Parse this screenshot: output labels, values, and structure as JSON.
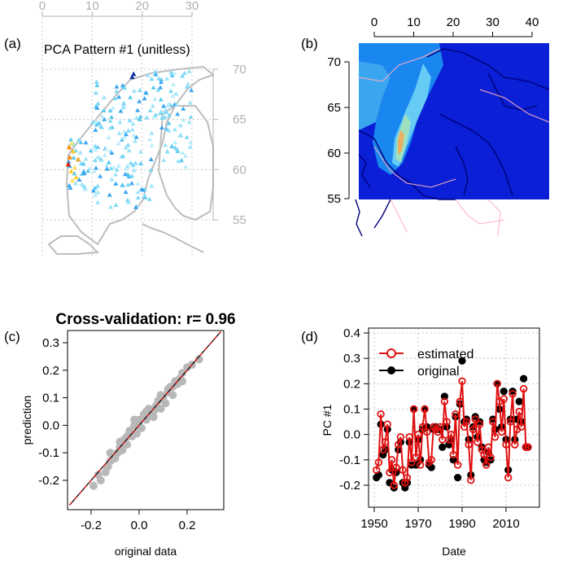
{
  "figure": {
    "panel_labels": [
      "(a)",
      "(b)",
      "(c)",
      "(d)"
    ]
  },
  "chart_data": [
    {
      "id": "a",
      "type": "scatter",
      "title": "PCA Pattern #1 (unitless)",
      "x_ticks": [
        "0",
        "10",
        "20",
        "30"
      ],
      "y_ticks": [
        "55",
        "60",
        "65",
        "70"
      ],
      "xlim": [
        0,
        30
      ],
      "ylim": [
        52,
        71
      ],
      "grid": true,
      "colors": {
        "low": "#7fd9f5",
        "mid": "#1aa0e0",
        "high": "#e02000",
        "mid_high": "#ffcc33",
        "map": "#bdbdbd"
      }
    },
    {
      "id": "b",
      "type": "heatmap",
      "title": "",
      "x_ticks": [
        "0",
        "10",
        "20",
        "30",
        "40"
      ],
      "y_ticks": [
        "55",
        "60",
        "65",
        "70"
      ],
      "xlim": [
        -5,
        45
      ],
      "ylim": [
        55,
        72
      ],
      "colors": {
        "background": "#0a1fd6",
        "mid": "#1a86f0",
        "light": "#66ccf5",
        "coast": "#00007a",
        "contour": "#ffb0c0"
      }
    },
    {
      "id": "c",
      "type": "scatter",
      "title": "Cross-validation: r= 0.96",
      "xlabel": "original data",
      "ylabel": "prediction",
      "x_ticks": [
        "-0.2",
        "0.0",
        "0.2"
      ],
      "y_ticks": [
        "-0.2",
        "-0.1",
        "0.0",
        "0.1",
        "0.2",
        "0.3"
      ],
      "xlim": [
        -0.3,
        0.35
      ],
      "ylim": [
        -0.25,
        0.35
      ],
      "point_color": "#b8b8b8",
      "points": [
        [
          -0.19,
          -0.22
        ],
        [
          -0.17,
          -0.18
        ],
        [
          -0.16,
          -0.2
        ],
        [
          -0.14,
          -0.17
        ],
        [
          -0.13,
          -0.15
        ],
        [
          -0.12,
          -0.13
        ],
        [
          -0.11,
          -0.11
        ],
        [
          -0.1,
          -0.12
        ],
        [
          -0.09,
          -0.1
        ],
        [
          -0.08,
          -0.08
        ],
        [
          -0.07,
          -0.09
        ],
        [
          -0.06,
          -0.05
        ],
        [
          -0.05,
          -0.04
        ],
        [
          -0.04,
          -0.02
        ],
        [
          -0.03,
          -0.04
        ],
        [
          -0.02,
          0.0
        ],
        [
          -0.01,
          -0.03
        ],
        [
          0.0,
          0.0
        ],
        [
          0.0,
          0.02
        ],
        [
          0.01,
          -0.01
        ],
        [
          0.02,
          0.04
        ],
        [
          0.03,
          0.02
        ],
        [
          0.04,
          0.06
        ],
        [
          0.05,
          0.04
        ],
        [
          0.06,
          0.03
        ],
        [
          0.07,
          0.07
        ],
        [
          0.08,
          0.09
        ],
        [
          0.09,
          0.06
        ],
        [
          0.1,
          0.1
        ],
        [
          0.11,
          0.08
        ],
        [
          0.12,
          0.12
        ],
        [
          0.13,
          0.14
        ],
        [
          0.14,
          0.11
        ],
        [
          0.15,
          0.16
        ],
        [
          0.16,
          0.15
        ],
        [
          0.17,
          0.17
        ],
        [
          0.18,
          0.19
        ],
        [
          0.2,
          0.21
        ],
        [
          0.22,
          0.22
        ],
        [
          0.25,
          0.24
        ],
        [
          -0.08,
          -0.06
        ],
        [
          -0.05,
          -0.07
        ],
        [
          0.03,
          0.05
        ],
        [
          0.06,
          0.05
        ],
        [
          0.12,
          0.13
        ],
        [
          -0.12,
          -0.1
        ],
        [
          0.09,
          0.11
        ],
        [
          -0.02,
          0.02
        ],
        [
          0.14,
          0.14
        ],
        [
          0.18,
          0.16
        ]
      ],
      "reference_line_colors": [
        "#000000",
        "#e01010"
      ]
    },
    {
      "id": "d",
      "type": "line",
      "xlabel": "Date",
      "ylabel": "PC #1",
      "x_ticks": [
        "1950",
        "1970",
        "1990",
        "2010"
      ],
      "y_ticks": [
        "-0.2",
        "-0.1",
        "0.0",
        "0.1",
        "0.2",
        "0.3",
        "0.4"
      ],
      "xlim": [
        1947,
        2023
      ],
      "ylim": [
        -0.29,
        0.42
      ],
      "legend": [
        "estimated",
        "original"
      ],
      "legend_position": "top-left",
      "colors": {
        "estimated": "#e01010",
        "original": "#000000"
      },
      "series": [
        {
          "name": "estimated",
          "x": [
            1951,
            1952,
            1953,
            1954,
            1955,
            1956,
            1957,
            1958,
            1959,
            1960,
            1961,
            1962,
            1963,
            1964,
            1965,
            1966,
            1967,
            1968,
            1969,
            1970,
            1971,
            1972,
            1973,
            1974,
            1975,
            1976,
            1977,
            1978,
            1979,
            1980,
            1981,
            1982,
            1983,
            1984,
            1985,
            1986,
            1987,
            1988,
            1989,
            1990,
            1991,
            1992,
            1993,
            1994,
            1995,
            1996,
            1997,
            1998,
            1999,
            2000,
            2001,
            2002,
            2003,
            2004,
            2005,
            2006,
            2007,
            2008,
            2009,
            2010,
            2011,
            2012,
            2013,
            2014,
            2015,
            2016,
            2017,
            2018,
            2019,
            2020
          ],
          "y": [
            -0.14,
            -0.11,
            0.08,
            -0.06,
            -0.03,
            0.04,
            -0.15,
            -0.1,
            -0.2,
            -0.13,
            -0.04,
            -0.01,
            -0.14,
            -0.19,
            -0.17,
            -0.01,
            -0.11,
            0.1,
            -0.09,
            0.0,
            -0.12,
            0.03,
            0.1,
            0.01,
            -0.11,
            -0.1,
            0.03,
            0.02,
            0.01,
            0.03,
            -0.02,
            0.13,
            0.05,
            -0.02,
            0.0,
            -0.08,
            0.08,
            -0.12,
            0.13,
            0.21,
            0.03,
            0.05,
            -0.04,
            -0.18,
            0.02,
            0.06,
            -0.03,
            0.04,
            -0.06,
            -0.08,
            -0.12,
            -0.05,
            -0.09,
            0.05,
            -0.01,
            0.2,
            0.13,
            0.01,
            0.14,
            -0.04,
            -0.17,
            0.05,
            0.16,
            -0.04,
            0.02,
            0.09,
            0.03,
            0.18,
            -0.05,
            -0.05
          ]
        },
        {
          "name": "original",
          "x": [
            1951,
            1952,
            1953,
            1954,
            1955,
            1956,
            1957,
            1958,
            1959,
            1960,
            1961,
            1962,
            1963,
            1964,
            1965,
            1966,
            1967,
            1968,
            1969,
            1970,
            1971,
            1972,
            1973,
            1974,
            1975,
            1976,
            1977,
            1978,
            1979,
            1980,
            1981,
            1982,
            1983,
            1984,
            1985,
            1986,
            1987,
            1988,
            1989,
            1990,
            1991,
            1992,
            1993,
            1994,
            1995,
            1996,
            1997,
            1998,
            1999,
            2000,
            2001,
            2002,
            2003,
            2004,
            2005,
            2006,
            2007,
            2008,
            2009,
            2010,
            2011,
            2012,
            2013,
            2014,
            2015,
            2016,
            2017,
            2018,
            2019,
            2020
          ],
          "y": [
            -0.17,
            -0.16,
            0.04,
            -0.08,
            -0.06,
            0.02,
            -0.19,
            -0.14,
            -0.21,
            -0.15,
            -0.06,
            -0.03,
            -0.19,
            -0.21,
            -0.19,
            -0.03,
            -0.12,
            0.1,
            -0.12,
            -0.02,
            -0.1,
            0.02,
            0.1,
            0.03,
            -0.12,
            -0.13,
            0.02,
            0.03,
            0.02,
            0.02,
            -0.05,
            0.15,
            0.03,
            -0.04,
            -0.02,
            -0.1,
            0.07,
            -0.17,
            0.12,
            0.29,
            0.05,
            0.06,
            -0.02,
            -0.16,
            0.03,
            0.07,
            -0.01,
            0.05,
            -0.05,
            -0.1,
            -0.11,
            -0.07,
            -0.1,
            0.06,
            0.02,
            0.2,
            0.1,
            0.03,
            0.17,
            -0.02,
            -0.14,
            0.06,
            0.17,
            -0.02,
            0.06,
            0.13,
            0.05,
            0.22,
            -0.05,
            -0.05
          ]
        }
      ]
    }
  ]
}
